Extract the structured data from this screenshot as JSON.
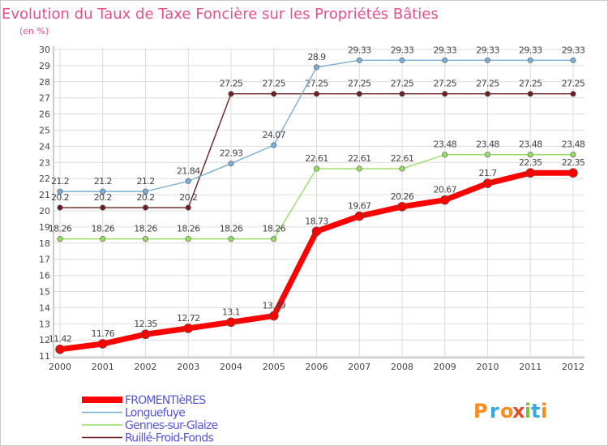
{
  "chart_data": {
    "type": "line",
    "title": "Evolution du Taux de Taxe Foncière sur les Propriétés Bâties",
    "ylabel": "(en %)",
    "xlabel": "",
    "ylim": [
      11,
      30
    ],
    "yticks": [
      11,
      12,
      13,
      14,
      15,
      16,
      17,
      18,
      19,
      20,
      21,
      22,
      23,
      24,
      25,
      26,
      27,
      28,
      29,
      30
    ],
    "grid": true,
    "categories": [
      "2000",
      "2001",
      "2002",
      "2003",
      "2004",
      "2005",
      "2006",
      "2007",
      "2008",
      "2009",
      "2010",
      "2011",
      "2012"
    ],
    "series": [
      {
        "name": "Ruillé-Froid-Fonds",
        "color": "#6b1f1f",
        "values": [
          20.2,
          20.2,
          20.2,
          20.2,
          27.25,
          27.25,
          27.25,
          27.25,
          27.25,
          27.25,
          27.25,
          27.25,
          27.25
        ],
        "labels": [
          "20.2",
          "20.2",
          "20.2",
          "20.2",
          "27.25",
          "27.25",
          "27.25",
          "27.25",
          "27.25",
          "27.25",
          "27.25",
          "27.25",
          "27.25"
        ]
      },
      {
        "name": "Gennes-sur-Glaize",
        "color": "#99dd66",
        "values": [
          18.26,
          18.26,
          18.26,
          18.26,
          18.26,
          18.26,
          22.61,
          22.61,
          22.61,
          23.48,
          23.48,
          23.48,
          23.48
        ],
        "labels": [
          "18.26",
          "18.26",
          "18.26",
          "18.26",
          "18.26",
          "18.26",
          "22.61",
          "22.61",
          "22.61",
          "23.48",
          "23.48",
          "23.48",
          "23.48"
        ]
      },
      {
        "name": "Longuefuye",
        "color": "#7aaed6",
        "values": [
          21.2,
          21.2,
          21.2,
          21.84,
          22.93,
          24.07,
          28.9,
          29.33,
          29.33,
          29.33,
          29.33,
          29.33,
          29.33
        ],
        "labels": [
          "21.2",
          "21.2",
          "21.2",
          "21.84",
          "22.93",
          "24.07",
          "28.9",
          "29.33",
          "29.33",
          "29.33",
          "29.33",
          "29.33",
          "29.33"
        ]
      },
      {
        "name": "FROMENTIèRES",
        "color": "#ff0000",
        "values": [
          11.42,
          11.76,
          12.35,
          12.72,
          13.1,
          13.49,
          18.73,
          19.67,
          20.26,
          20.67,
          21.7,
          22.35,
          22.35
        ],
        "labels": [
          "11.42",
          "11.76",
          "12.35",
          "12.72",
          "13.1",
          "13.49",
          "18.73",
          "19.67",
          "20.26",
          "20.67",
          "21.7",
          "22.35",
          "22.35"
        ]
      }
    ],
    "legend": {
      "position": "bottom-left",
      "order": [
        "FROMENTIèRES",
        "Longuefuye",
        "Gennes-sur-Glaize",
        "Ruillé-Froid-Fonds"
      ]
    }
  },
  "brand": {
    "letters": [
      "P",
      "r",
      "o",
      "x",
      "i",
      "t",
      "i"
    ],
    "colors": [
      "#ff8c1a",
      "#37a8e6",
      "#ff8c1a",
      "#e64b2e",
      "#7cc242",
      "#37a8e6",
      "#ff8c1a"
    ]
  },
  "colors": {
    "title": "#e8508a",
    "axis": "#999999",
    "grid": "#dcdcdc",
    "label": "#444444"
  }
}
